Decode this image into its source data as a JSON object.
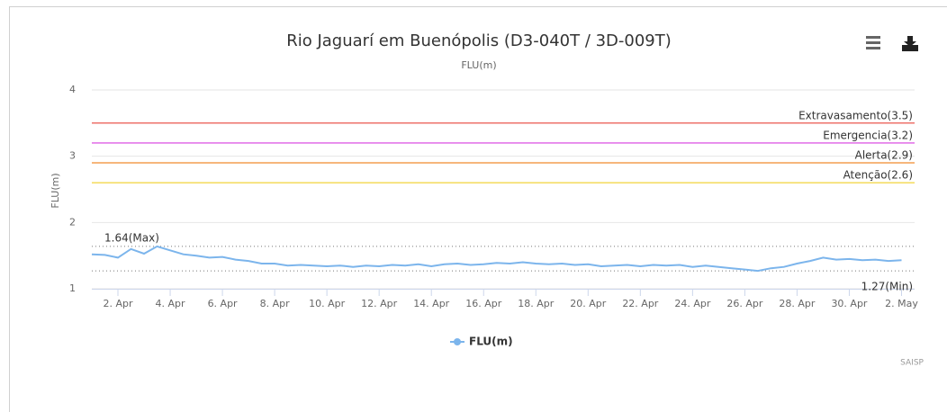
{
  "chart_data": {
    "type": "line",
    "title": "Rio Jaguarí em Buenópolis (D3-040T / 3D-009T)",
    "subtitle": "FLU(m)",
    "y_label": "FLU(m)",
    "credits": "SAISP",
    "xlim": [
      1,
      32.5
    ],
    "xticks": [
      {
        "value": 2,
        "label": "2. Apr"
      },
      {
        "value": 4,
        "label": "4. Apr"
      },
      {
        "value": 6,
        "label": "6. Apr"
      },
      {
        "value": 8,
        "label": "8. Apr"
      },
      {
        "value": 10,
        "label": "10. Apr"
      },
      {
        "value": 12,
        "label": "12. Apr"
      },
      {
        "value": 14,
        "label": "14. Apr"
      },
      {
        "value": 16,
        "label": "16. Apr"
      },
      {
        "value": 18,
        "label": "18. Apr"
      },
      {
        "value": 20,
        "label": "20. Apr"
      },
      {
        "value": 22,
        "label": "22. Apr"
      },
      {
        "value": 24,
        "label": "24. Apr"
      },
      {
        "value": 26,
        "label": "26. Apr"
      },
      {
        "value": 28,
        "label": "28. Apr"
      },
      {
        "value": 30,
        "label": "30. Apr"
      },
      {
        "value": 32,
        "label": "2. May"
      }
    ],
    "ylim": [
      1,
      4
    ],
    "yticks": [
      1,
      2,
      3,
      4
    ],
    "grid": true,
    "x": [
      1,
      1.5,
      2,
      2.5,
      3,
      3.5,
      4,
      4.5,
      5,
      5.5,
      6,
      6.5,
      7,
      7.5,
      8,
      8.5,
      9,
      9.5,
      10,
      10.5,
      11,
      11.5,
      12,
      12.5,
      13,
      13.5,
      14,
      14.5,
      15,
      15.5,
      16,
      16.5,
      17,
      17.5,
      18,
      18.5,
      19,
      19.5,
      20,
      20.5,
      21,
      21.5,
      22,
      22.5,
      23,
      23.5,
      24,
      24.5,
      25,
      25.5,
      26,
      26.5,
      27,
      27.5,
      28,
      28.5,
      29,
      29.5,
      30,
      30.5,
      31,
      31.5,
      32
    ],
    "series": [
      {
        "name": "FLU(m)",
        "color": "#7cb5ec",
        "values": [
          1.52,
          1.51,
          1.47,
          1.6,
          1.53,
          1.64,
          1.58,
          1.52,
          1.5,
          1.47,
          1.48,
          1.44,
          1.42,
          1.38,
          1.38,
          1.35,
          1.36,
          1.35,
          1.34,
          1.35,
          1.33,
          1.35,
          1.34,
          1.36,
          1.35,
          1.37,
          1.34,
          1.37,
          1.38,
          1.36,
          1.37,
          1.39,
          1.38,
          1.4,
          1.38,
          1.37,
          1.38,
          1.36,
          1.37,
          1.34,
          1.35,
          1.36,
          1.34,
          1.36,
          1.35,
          1.36,
          1.33,
          1.35,
          1.33,
          1.31,
          1.29,
          1.27,
          1.31,
          1.33,
          1.38,
          1.42,
          1.47,
          1.44,
          1.45,
          1.43,
          1.44,
          1.42,
          1.43
        ]
      }
    ],
    "plot_lines": [
      {
        "label": "Extravasamento(3.5)",
        "value": 3.5,
        "color": "#e8443a"
      },
      {
        "label": "Emergencia(3.2)",
        "value": 3.2,
        "color": "#d63adf"
      },
      {
        "label": "Alerta(2.9)",
        "value": 2.9,
        "color": "#f08a2c"
      },
      {
        "label": "Atenção(2.6)",
        "value": 2.6,
        "color": "#f2d43a"
      }
    ],
    "max_line": {
      "value": 1.64,
      "label": "1.64(Max)"
    },
    "min_line": {
      "value": 1.27,
      "label": "1.27(Min)"
    }
  }
}
